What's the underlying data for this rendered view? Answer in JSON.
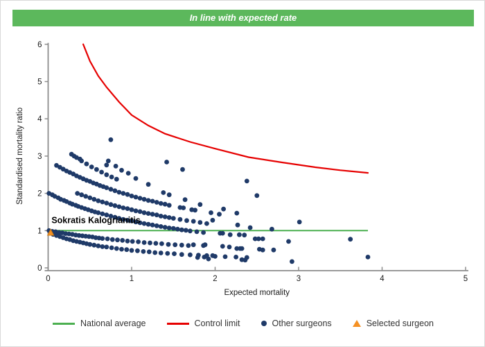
{
  "header": {
    "title": "In line with expected rate",
    "bg_color": "#5cb85c"
  },
  "legend": {
    "items": [
      {
        "id": "national-average",
        "label": "National average",
        "marker": "line",
        "color": "#4caf50"
      },
      {
        "id": "control-limit",
        "label": "Control limit",
        "marker": "line",
        "color": "#e60000"
      },
      {
        "id": "other-surgeons",
        "label": "Other surgeons",
        "marker": "dot",
        "color": "#1f3a68"
      },
      {
        "id": "selected-surgeon",
        "label": "Selected surgeon",
        "marker": "triangle",
        "color": "#f59123"
      }
    ]
  },
  "chart_data": {
    "type": "scatter",
    "title": "In line with expected rate",
    "xlabel": "Expected mortality",
    "ylabel": "Standardised mortality ratio",
    "xlim": [
      0,
      5
    ],
    "ylim": [
      0,
      6
    ],
    "x_ticks": [
      0,
      1,
      2,
      3,
      4,
      5
    ],
    "y_ticks": [
      0,
      1,
      2,
      3,
      4,
      5,
      6
    ],
    "grid": false,
    "legend_position": "bottom",
    "national_average": {
      "y": 1,
      "x_start": 0.03,
      "x_end": 3.83,
      "color": "#4caf50"
    },
    "control_limit": {
      "color": "#e60000",
      "points": [
        [
          0.42,
          6.0
        ],
        [
          0.5,
          5.55
        ],
        [
          0.6,
          5.15
        ],
        [
          0.7,
          4.85
        ],
        [
          0.85,
          4.45
        ],
        [
          1.0,
          4.1
        ],
        [
          1.2,
          3.82
        ],
        [
          1.4,
          3.6
        ],
        [
          1.7,
          3.38
        ],
        [
          2.0,
          3.2
        ],
        [
          2.4,
          2.97
        ],
        [
          2.8,
          2.83
        ],
        [
          3.2,
          2.7
        ],
        [
          3.5,
          2.62
        ],
        [
          3.83,
          2.55
        ]
      ]
    },
    "selected_surgeon": {
      "name": "Sokratis Kalogrianitis",
      "x": 0.03,
      "y": 0.95,
      "color": "#f59123"
    },
    "other_surgeons": {
      "color": "#1f3a68",
      "bands": [
        [
          [
            0.28,
            3.05
          ],
          [
            0.34,
            2.96
          ],
          [
            0.4,
            2.87
          ],
          [
            0.46,
            2.79
          ],
          [
            0.52,
            2.71
          ],
          [
            0.58,
            2.64
          ],
          [
            0.64,
            2.57
          ],
          [
            0.7,
            2.5
          ],
          [
            0.76,
            2.44
          ],
          [
            0.82,
            2.38
          ]
        ],
        [
          [
            0.1,
            2.75
          ],
          [
            0.14,
            2.7
          ],
          [
            0.18,
            2.65
          ],
          [
            0.22,
            2.6
          ],
          [
            0.26,
            2.56
          ],
          [
            0.3,
            2.52
          ],
          [
            0.34,
            2.47
          ],
          [
            0.38,
            2.43
          ],
          [
            0.42,
            2.39
          ],
          [
            0.46,
            2.35
          ],
          [
            0.5,
            2.32
          ],
          [
            0.54,
            2.28
          ],
          [
            0.58,
            2.25
          ],
          [
            0.62,
            2.21
          ],
          [
            0.66,
            2.18
          ],
          [
            0.7,
            2.15
          ],
          [
            0.75,
            2.11
          ],
          [
            0.8,
            2.07
          ],
          [
            0.85,
            2.03
          ],
          [
            0.9,
            2.0
          ],
          [
            0.95,
            1.97
          ],
          [
            1.0,
            1.93
          ],
          [
            1.05,
            1.9
          ],
          [
            1.1,
            1.87
          ],
          [
            1.15,
            1.84
          ],
          [
            1.2,
            1.81
          ],
          [
            1.25,
            1.79
          ],
          [
            1.3,
            1.76
          ],
          [
            1.35,
            1.73
          ],
          [
            1.4,
            1.71
          ],
          [
            1.45,
            1.68
          ],
          [
            1.58,
            1.62
          ],
          [
            1.62,
            1.61
          ],
          [
            1.72,
            1.56
          ],
          [
            1.76,
            1.55
          ]
        ],
        [
          [
            0.35,
            2.0
          ],
          [
            0.4,
            1.96
          ],
          [
            0.45,
            1.92
          ],
          [
            0.5,
            1.88
          ],
          [
            0.55,
            1.84
          ],
          [
            0.6,
            1.8
          ],
          [
            0.65,
            1.77
          ],
          [
            0.7,
            1.74
          ],
          [
            0.75,
            1.7
          ],
          [
            0.8,
            1.67
          ],
          [
            0.85,
            1.64
          ],
          [
            0.9,
            1.61
          ],
          [
            0.95,
            1.59
          ],
          [
            1.0,
            1.56
          ],
          [
            1.05,
            1.53
          ],
          [
            1.1,
            1.51
          ],
          [
            1.15,
            1.48
          ],
          [
            1.2,
            1.46
          ],
          [
            1.25,
            1.44
          ],
          [
            1.3,
            1.42
          ],
          [
            1.35,
            1.39
          ],
          [
            1.4,
            1.37
          ],
          [
            1.45,
            1.35
          ],
          [
            1.5,
            1.33
          ],
          [
            1.58,
            1.3
          ],
          [
            1.66,
            1.27
          ],
          [
            1.74,
            1.25
          ],
          [
            1.82,
            1.22
          ],
          [
            1.9,
            1.19
          ]
        ],
        [
          [
            0.01,
            2.0
          ],
          [
            0.05,
            1.96
          ],
          [
            0.08,
            1.92
          ],
          [
            0.12,
            1.88
          ],
          [
            0.15,
            1.84
          ],
          [
            0.19,
            1.81
          ],
          [
            0.22,
            1.78
          ],
          [
            0.26,
            1.74
          ],
          [
            0.29,
            1.71
          ],
          [
            0.33,
            1.68
          ],
          [
            0.36,
            1.65
          ],
          [
            0.4,
            1.62
          ],
          [
            0.44,
            1.59
          ],
          [
            0.48,
            1.56
          ],
          [
            0.52,
            1.53
          ],
          [
            0.56,
            1.5
          ],
          [
            0.6,
            1.48
          ],
          [
            0.65,
            1.45
          ],
          [
            0.7,
            1.42
          ],
          [
            0.75,
            1.39
          ],
          [
            0.8,
            1.36
          ],
          [
            0.85,
            1.33
          ],
          [
            0.9,
            1.3
          ],
          [
            0.95,
            1.28
          ],
          [
            1.0,
            1.26
          ],
          [
            1.05,
            1.23
          ],
          [
            1.1,
            1.21
          ],
          [
            1.15,
            1.19
          ],
          [
            1.2,
            1.17
          ],
          [
            1.25,
            1.15
          ],
          [
            1.3,
            1.13
          ],
          [
            1.35,
            1.11
          ],
          [
            1.4,
            1.09
          ],
          [
            1.45,
            1.07
          ],
          [
            1.5,
            1.06
          ],
          [
            1.55,
            1.04
          ],
          [
            1.6,
            1.02
          ],
          [
            1.65,
            1.01
          ],
          [
            1.7,
            0.99
          ],
          [
            1.78,
            0.97
          ],
          [
            1.86,
            0.95
          ]
        ],
        [
          [
            0.01,
            1.0
          ],
          [
            0.05,
            0.98
          ],
          [
            0.09,
            0.97
          ],
          [
            0.13,
            0.95
          ],
          [
            0.17,
            0.94
          ],
          [
            0.21,
            0.92
          ],
          [
            0.25,
            0.91
          ],
          [
            0.29,
            0.9
          ],
          [
            0.33,
            0.88
          ],
          [
            0.37,
            0.87
          ],
          [
            0.41,
            0.86
          ],
          [
            0.45,
            0.85
          ],
          [
            0.49,
            0.84
          ],
          [
            0.53,
            0.83
          ],
          [
            0.57,
            0.81
          ],
          [
            0.61,
            0.8
          ],
          [
            0.65,
            0.79
          ],
          [
            0.71,
            0.78
          ],
          [
            0.77,
            0.76
          ],
          [
            0.83,
            0.75
          ],
          [
            0.89,
            0.74
          ],
          [
            0.95,
            0.72
          ],
          [
            1.01,
            0.71
          ],
          [
            1.08,
            0.7
          ],
          [
            1.15,
            0.68
          ],
          [
            1.22,
            0.67
          ],
          [
            1.29,
            0.66
          ],
          [
            1.36,
            0.65
          ],
          [
            1.44,
            0.63
          ],
          [
            1.52,
            0.62
          ],
          [
            1.6,
            0.61
          ],
          [
            1.68,
            0.6
          ]
        ],
        [
          [
            0.06,
            0.9
          ],
          [
            0.1,
            0.87
          ],
          [
            0.14,
            0.84
          ],
          [
            0.18,
            0.81
          ],
          [
            0.22,
            0.78
          ],
          [
            0.26,
            0.76
          ],
          [
            0.3,
            0.73
          ],
          [
            0.34,
            0.71
          ],
          [
            0.38,
            0.69
          ],
          [
            0.42,
            0.67
          ],
          [
            0.46,
            0.65
          ],
          [
            0.5,
            0.63
          ],
          [
            0.55,
            0.61
          ],
          [
            0.6,
            0.59
          ],
          [
            0.65,
            0.57
          ],
          [
            0.7,
            0.56
          ],
          [
            0.76,
            0.54
          ],
          [
            0.82,
            0.52
          ],
          [
            0.88,
            0.5
          ],
          [
            0.94,
            0.49
          ],
          [
            1.0,
            0.47
          ],
          [
            1.07,
            0.46
          ],
          [
            1.14,
            0.44
          ],
          [
            1.21,
            0.43
          ],
          [
            1.28,
            0.41
          ],
          [
            1.35,
            0.4
          ],
          [
            1.43,
            0.39
          ],
          [
            1.51,
            0.38
          ],
          [
            1.6,
            0.36
          ],
          [
            1.7,
            0.35
          ],
          [
            1.8,
            0.34
          ],
          [
            1.9,
            0.33
          ],
          [
            2.0,
            0.31
          ],
          [
            2.12,
            0.3
          ],
          [
            2.25,
            0.29
          ],
          [
            2.38,
            0.28
          ]
        ]
      ],
      "isolated": [
        [
          0.31,
          3.0
        ],
        [
          0.38,
          2.92
        ],
        [
          0.75,
          3.44
        ],
        [
          0.72,
          2.87
        ],
        [
          0.81,
          2.73
        ],
        [
          0.96,
          2.54
        ],
        [
          0.7,
          2.76
        ],
        [
          0.88,
          2.62
        ],
        [
          1.05,
          2.4
        ],
        [
          1.42,
          2.84
        ],
        [
          1.61,
          2.64
        ],
        [
          1.2,
          2.24
        ],
        [
          1.38,
          2.02
        ],
        [
          1.45,
          1.96
        ],
        [
          1.64,
          1.83
        ],
        [
          1.82,
          1.7
        ],
        [
          2.38,
          2.33
        ],
        [
          2.5,
          1.94
        ],
        [
          1.95,
          1.48
        ],
        [
          2.05,
          1.44
        ],
        [
          1.97,
          1.28
        ],
        [
          2.1,
          1.58
        ],
        [
          2.26,
          1.47
        ],
        [
          2.27,
          1.15
        ],
        [
          2.42,
          1.08
        ],
        [
          2.68,
          1.04
        ],
        [
          3.01,
          1.23
        ],
        [
          2.88,
          0.71
        ],
        [
          3.62,
          0.77
        ],
        [
          2.06,
          0.93
        ],
        [
          2.09,
          0.93
        ],
        [
          2.18,
          0.89
        ],
        [
          2.29,
          0.89
        ],
        [
          2.35,
          0.88
        ],
        [
          2.48,
          0.78
        ],
        [
          2.52,
          0.78
        ],
        [
          2.57,
          0.78
        ],
        [
          1.88,
          0.62
        ],
        [
          2.09,
          0.58
        ],
        [
          2.17,
          0.56
        ],
        [
          2.26,
          0.52
        ],
        [
          2.3,
          0.52
        ],
        [
          2.32,
          0.52
        ],
        [
          2.53,
          0.5
        ],
        [
          2.57,
          0.48
        ],
        [
          2.7,
          0.48
        ],
        [
          1.97,
          0.33
        ],
        [
          1.87,
          0.29
        ],
        [
          2.32,
          0.22
        ],
        [
          2.36,
          0.21
        ],
        [
          2.92,
          0.17
        ],
        [
          3.83,
          0.29
        ],
        [
          1.74,
          0.62
        ],
        [
          1.86,
          0.6
        ],
        [
          1.79,
          0.28
        ],
        [
          1.92,
          0.24
        ]
      ]
    }
  }
}
